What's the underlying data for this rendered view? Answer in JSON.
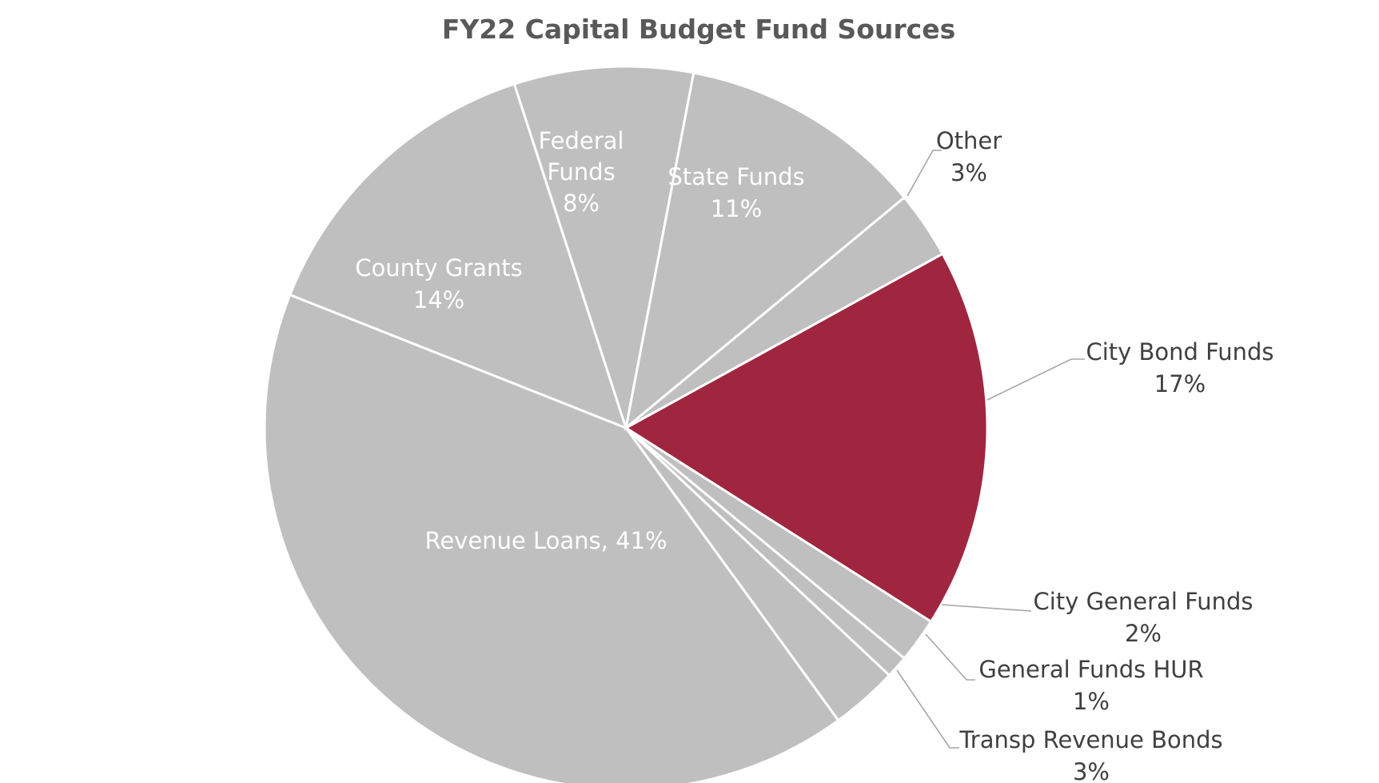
{
  "chart_data": {
    "type": "pie",
    "title": "FY22 Capital Budget Fund Sources",
    "slices": [
      {
        "label": "City Bond Funds",
        "value": 17,
        "value_label": "17%",
        "color": "#a0253f"
      },
      {
        "label": "City General Funds",
        "value": 2,
        "value_label": "2%",
        "color": "#bfbfbf"
      },
      {
        "label": "General Funds HUR",
        "value": 1,
        "value_label": "1%",
        "color": "#bfbfbf"
      },
      {
        "label": "Transp Revenue Bonds",
        "value": 3,
        "value_label": "3%",
        "color": "#bfbfbf"
      },
      {
        "label": "Revenue Loans",
        "value": 41,
        "value_label": "41%",
        "color": "#bfbfbf"
      },
      {
        "label": "County Grants",
        "value": 14,
        "value_label": "14%",
        "color": "#bfbfbf"
      },
      {
        "label": "Federal Funds",
        "value": 8,
        "value_label": "8%",
        "color": "#bfbfbf"
      },
      {
        "label": "State Funds",
        "value": 11,
        "value_label": "11%",
        "color": "#bfbfbf"
      },
      {
        "label": "Other",
        "value": 3,
        "value_label": "3%",
        "color": "#bfbfbf"
      }
    ],
    "label_texts": {
      "city_bond": [
        "City Bond Funds",
        "17%"
      ],
      "city_general": [
        "City General Funds",
        "2%"
      ],
      "hur": [
        "General Funds HUR",
        "1%"
      ],
      "transp": [
        "Transp Revenue Bonds",
        "3%"
      ],
      "revenue_loans": [
        "Revenue Loans, 41%"
      ],
      "county": [
        "County Grants",
        "14%"
      ],
      "federal": [
        "Federal",
        "Funds",
        "8%"
      ],
      "state": [
        "State Funds",
        "11%"
      ],
      "other": [
        "Other",
        "3%"
      ]
    }
  }
}
